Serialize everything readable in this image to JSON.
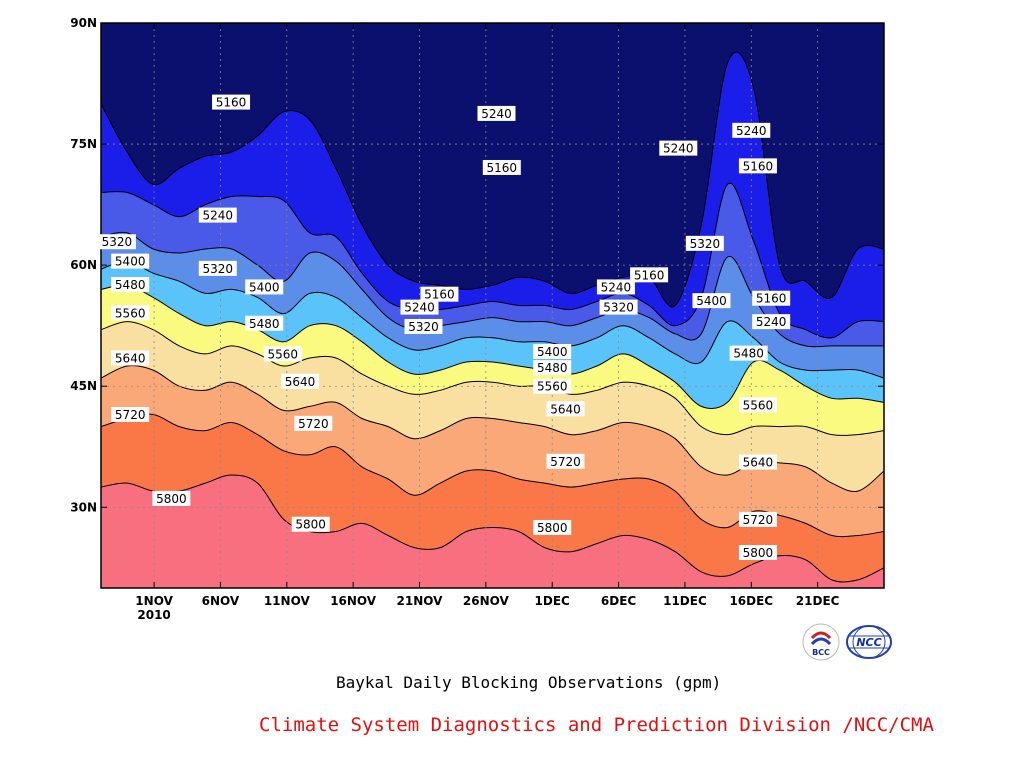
{
  "chart_data": {
    "type": "contour",
    "title": "Baykal Daily Blocking Observations (gpm)",
    "xlabel": "",
    "ylabel": "",
    "x_ticks": [
      "1NOV\n2010",
      "6NOV",
      "11NOV",
      "16NOV",
      "21NOV",
      "26NOV",
      "1DEC",
      "6DEC",
      "11DEC",
      "16DEC",
      "21DEC"
    ],
    "x_tick_days": [
      1,
      6,
      11,
      16,
      21,
      26,
      31,
      36,
      41,
      46,
      51
    ],
    "x_range_days": [
      -3,
      56
    ],
    "y_ticks": [
      "30N",
      "45N",
      "60N",
      "75N",
      "90N"
    ],
    "y_tick_values": [
      30,
      45,
      60,
      75,
      90
    ],
    "ylim": [
      20,
      90
    ],
    "grid": true,
    "levels": [
      5160,
      5240,
      5320,
      5400,
      5480,
      5560,
      5640,
      5720,
      5800
    ],
    "level_colors": [
      "#0b0f6e",
      "#1a1ee8",
      "#4a5ae8",
      "#5a8ee8",
      "#5ac3fa",
      "#fafa80",
      "#fae0a0",
      "#faa878",
      "#fa7848",
      "#f87080"
    ],
    "contours": [
      {
        "level": 5800,
        "lat": [
          32.5,
          33.0,
          32.0,
          32.0,
          33.0,
          34.0,
          33.0,
          28.5,
          27.0,
          27.0,
          28.0,
          26.5,
          25.0,
          25.0,
          27.0,
          27.5,
          27.0,
          25.0,
          24.5,
          25.5,
          26.5,
          26.0,
          24.5,
          22.0,
          21.5,
          23.0,
          24.0,
          23.5,
          21.0,
          21.0,
          22.5
        ]
      },
      {
        "level": 5720,
        "lat": [
          40.0,
          41.0,
          41.5,
          40.0,
          39.5,
          40.5,
          39.0,
          37.0,
          36.5,
          37.5,
          35.0,
          33.5,
          31.5,
          33.0,
          34.5,
          34.5,
          33.5,
          33.0,
          32.5,
          33.0,
          33.5,
          33.5,
          32.0,
          28.5,
          27.5,
          29.5,
          29.0,
          28.0,
          26.5,
          26.5,
          27.0
        ]
      },
      {
        "level": 5640,
        "lat": [
          46.0,
          47.5,
          47.0,
          45.0,
          44.5,
          45.5,
          44.0,
          42.0,
          42.5,
          43.0,
          41.0,
          40.0,
          38.5,
          39.5,
          41.0,
          41.0,
          40.5,
          40.0,
          39.0,
          39.5,
          40.5,
          40.0,
          38.5,
          35.0,
          34.0,
          35.5,
          35.5,
          35.0,
          33.0,
          32.0,
          34.5
        ]
      },
      {
        "level": 5560,
        "lat": [
          52.0,
          53.0,
          52.0,
          50.0,
          49.0,
          50.0,
          49.0,
          47.5,
          48.5,
          48.5,
          46.5,
          45.0,
          44.0,
          44.5,
          45.5,
          45.5,
          45.0,
          45.0,
          44.0,
          44.5,
          45.5,
          45.0,
          43.5,
          40.0,
          39.0,
          40.0,
          40.0,
          40.0,
          39.0,
          39.0,
          39.5
        ]
      },
      {
        "level": 5480,
        "lat": [
          57.0,
          57.5,
          56.0,
          54.0,
          52.5,
          53.0,
          52.0,
          50.5,
          52.5,
          52.5,
          50.5,
          48.0,
          46.5,
          47.0,
          48.0,
          48.0,
          47.5,
          47.0,
          46.5,
          47.5,
          49.0,
          47.5,
          45.5,
          42.5,
          43.0,
          48.0,
          47.0,
          45.0,
          43.5,
          43.5,
          43.0
        ]
      },
      {
        "level": 5400,
        "lat": [
          59.5,
          60.5,
          59.0,
          58.0,
          56.5,
          57.0,
          56.0,
          54.0,
          56.5,
          56.0,
          53.5,
          51.0,
          49.5,
          50.0,
          51.0,
          51.0,
          50.5,
          50.5,
          50.0,
          51.0,
          52.5,
          51.0,
          49.0,
          48.0,
          53.0,
          51.0,
          48.0,
          47.0,
          47.0,
          47.0,
          46.0
        ]
      },
      {
        "level": 5320,
        "lat": [
          63.5,
          64.0,
          62.0,
          61.5,
          62.0,
          62.0,
          60.0,
          58.0,
          61.5,
          60.5,
          57.0,
          53.5,
          52.0,
          52.5,
          53.0,
          53.5,
          53.0,
          53.0,
          52.5,
          53.5,
          54.5,
          53.5,
          51.5,
          51.5,
          61.0,
          56.0,
          51.5,
          50.0,
          50.0,
          50.0,
          50.0
        ]
      },
      {
        "level": 5240,
        "lat": [
          69.0,
          69.0,
          67.5,
          66.0,
          67.5,
          68.5,
          68.5,
          68.0,
          64.0,
          63.5,
          59.0,
          55.5,
          54.5,
          54.5,
          55.0,
          55.5,
          55.0,
          55.0,
          54.5,
          55.5,
          56.5,
          55.0,
          52.5,
          56.0,
          70.0,
          63.0,
          54.0,
          52.0,
          51.0,
          53.0,
          53.0
        ]
      },
      {
        "level": 5160,
        "lat": [
          80.0,
          74.0,
          70.0,
          72.0,
          73.5,
          74.0,
          76.0,
          79.0,
          78.0,
          72.0,
          65.0,
          60.0,
          58.0,
          57.5,
          57.0,
          57.5,
          58.5,
          58.0,
          56.5,
          57.5,
          58.5,
          58.5,
          55.0,
          65.0,
          85.0,
          82.0,
          60.0,
          58.0,
          56.0,
          62.0,
          62.0
        ]
      }
    ],
    "contour_labels": [
      {
        "text": "5160",
        "day": 6.8,
        "lat": 80.2
      },
      {
        "text": "5240",
        "day": 26.8,
        "lat": 78.8
      },
      {
        "text": "5160",
        "day": 27.2,
        "lat": 72.1
      },
      {
        "text": "5240",
        "day": 5.8,
        "lat": 66.2
      },
      {
        "text": "5320",
        "day": -1.8,
        "lat": 62.9
      },
      {
        "text": "5400",
        "day": -0.8,
        "lat": 60.5
      },
      {
        "text": "5480",
        "day": -0.8,
        "lat": 57.6
      },
      {
        "text": "5560",
        "day": -0.8,
        "lat": 54.1
      },
      {
        "text": "5640",
        "day": -0.8,
        "lat": 48.5
      },
      {
        "text": "5720",
        "day": -0.8,
        "lat": 41.5
      },
      {
        "text": "5800",
        "day": 2.3,
        "lat": 31.1
      },
      {
        "text": "5320",
        "day": 5.8,
        "lat": 59.6
      },
      {
        "text": "5400",
        "day": 9.3,
        "lat": 57.3
      },
      {
        "text": "5480",
        "day": 9.3,
        "lat": 52.8
      },
      {
        "text": "5560",
        "day": 10.7,
        "lat": 49.0
      },
      {
        "text": "5640",
        "day": 12.0,
        "lat": 45.6
      },
      {
        "text": "5720",
        "day": 13.0,
        "lat": 40.4
      },
      {
        "text": "5800",
        "day": 12.8,
        "lat": 27.9
      },
      {
        "text": "5160",
        "day": 22.5,
        "lat": 56.4
      },
      {
        "text": "5240",
        "day": 21.0,
        "lat": 54.8
      },
      {
        "text": "5320",
        "day": 21.3,
        "lat": 52.4
      },
      {
        "text": "5400",
        "day": 31.0,
        "lat": 49.3
      },
      {
        "text": "5480",
        "day": 31.0,
        "lat": 47.3
      },
      {
        "text": "5560",
        "day": 31.0,
        "lat": 45.0
      },
      {
        "text": "5640",
        "day": 32.0,
        "lat": 42.2
      },
      {
        "text": "5720",
        "day": 32.0,
        "lat": 35.7
      },
      {
        "text": "5800",
        "day": 31.0,
        "lat": 27.5
      },
      {
        "text": "5240",
        "day": 35.8,
        "lat": 57.3
      },
      {
        "text": "5160",
        "day": 38.3,
        "lat": 58.8
      },
      {
        "text": "5320",
        "day": 36.0,
        "lat": 54.8
      },
      {
        "text": "5240",
        "day": 40.5,
        "lat": 74.5
      },
      {
        "text": "5320",
        "day": 42.5,
        "lat": 62.7
      },
      {
        "text": "5400",
        "day": 43.0,
        "lat": 55.6
      },
      {
        "text": "5480",
        "day": 45.8,
        "lat": 49.1
      },
      {
        "text": "5560",
        "day": 46.5,
        "lat": 42.7
      },
      {
        "text": "5640",
        "day": 46.5,
        "lat": 35.6
      },
      {
        "text": "5720",
        "day": 46.5,
        "lat": 28.5
      },
      {
        "text": "5800",
        "day": 46.5,
        "lat": 24.4
      },
      {
        "text": "5240",
        "day": 46.0,
        "lat": 76.7
      },
      {
        "text": "5160",
        "day": 46.5,
        "lat": 72.3
      },
      {
        "text": "5160",
        "day": 47.5,
        "lat": 55.9
      },
      {
        "text": "5240",
        "day": 47.5,
        "lat": 53.0
      }
    ]
  },
  "captions": {
    "title": "Baykal Daily Blocking Observations (gpm)",
    "footer": "Climate System Diagnostics and Prediction Division /NCC/CMA",
    "footer_color": "#e01010"
  },
  "logos": {
    "left": {
      "text": "BCC"
    },
    "right": {
      "text": "NCC"
    }
  }
}
